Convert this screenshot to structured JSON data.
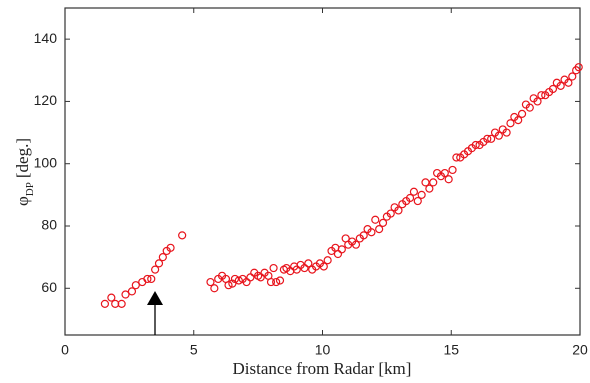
{
  "chart_data": {
    "type": "scatter",
    "xlabel": "Distance from Radar [km]",
    "ylabel": {
      "symbol": "φ",
      "subscript": "DP",
      "unit": "[deg.]"
    },
    "xlim": [
      0,
      20
    ],
    "ylim": [
      45,
      150
    ],
    "xticks": [
      0,
      5,
      10,
      15,
      20
    ],
    "yticks": [
      60,
      80,
      100,
      120,
      140
    ],
    "series": [
      {
        "color": "#e8141c",
        "x": [
          1.55,
          1.8,
          1.95,
          2.2,
          2.35,
          2.6,
          2.75,
          3.0,
          3.2,
          3.35,
          3.5,
          3.65,
          3.8,
          3.95,
          4.1,
          4.55,
          5.65,
          5.8,
          5.95,
          6.1,
          6.25,
          6.35,
          6.5,
          6.6,
          6.75,
          6.9,
          7.05,
          7.2,
          7.35,
          7.5,
          7.6,
          7.75,
          7.9,
          8.0,
          8.1,
          8.2,
          8.35,
          8.5,
          8.6,
          8.75,
          8.9,
          9.0,
          9.15,
          9.3,
          9.45,
          9.6,
          9.75,
          9.9,
          10.05,
          10.2,
          10.35,
          10.5,
          10.6,
          10.75,
          10.9,
          11.0,
          11.15,
          11.3,
          11.45,
          11.6,
          11.75,
          11.9,
          12.05,
          12.2,
          12.35,
          12.5,
          12.65,
          12.8,
          12.95,
          13.1,
          13.25,
          13.4,
          13.55,
          13.7,
          13.85,
          14.0,
          14.15,
          14.3,
          14.45,
          14.6,
          14.75,
          14.9,
          15.05,
          15.2,
          15.35,
          15.5,
          15.65,
          15.8,
          15.95,
          16.1,
          16.25,
          16.4,
          16.55,
          16.7,
          16.85,
          17.0,
          17.15,
          17.3,
          17.45,
          17.6,
          17.75,
          17.9,
          18.05,
          18.2,
          18.35,
          18.5,
          18.65,
          18.8,
          18.95,
          19.1,
          19.25,
          19.4,
          19.55,
          19.7,
          19.85,
          19.95
        ],
        "values": [
          55,
          57,
          55,
          55,
          58,
          59,
          61,
          62,
          63,
          63,
          66,
          68,
          70,
          72,
          73,
          77,
          62,
          60,
          63,
          64,
          63,
          61,
          61.5,
          63,
          62.5,
          63,
          62,
          63.5,
          65,
          64,
          63.5,
          65,
          64,
          62,
          66.5,
          62,
          62.5,
          66,
          66.5,
          65.5,
          67,
          66,
          67.5,
          66.5,
          68,
          66,
          67,
          68,
          67,
          69,
          72,
          73,
          71,
          72.5,
          76,
          74,
          75,
          74,
          76,
          77,
          79,
          78,
          82,
          79,
          81,
          83,
          84,
          86,
          85,
          87,
          88,
          89,
          91,
          88,
          90,
          94,
          92,
          94,
          97,
          96,
          97,
          95,
          98,
          102,
          102,
          103,
          104,
          105,
          106,
          106,
          107,
          108,
          108,
          110,
          109,
          111,
          110,
          113,
          115,
          114,
          116,
          119,
          118,
          121,
          120,
          122,
          122,
          123,
          124,
          126,
          125,
          127,
          126,
          128,
          130,
          131
        ]
      }
    ]
  }
}
